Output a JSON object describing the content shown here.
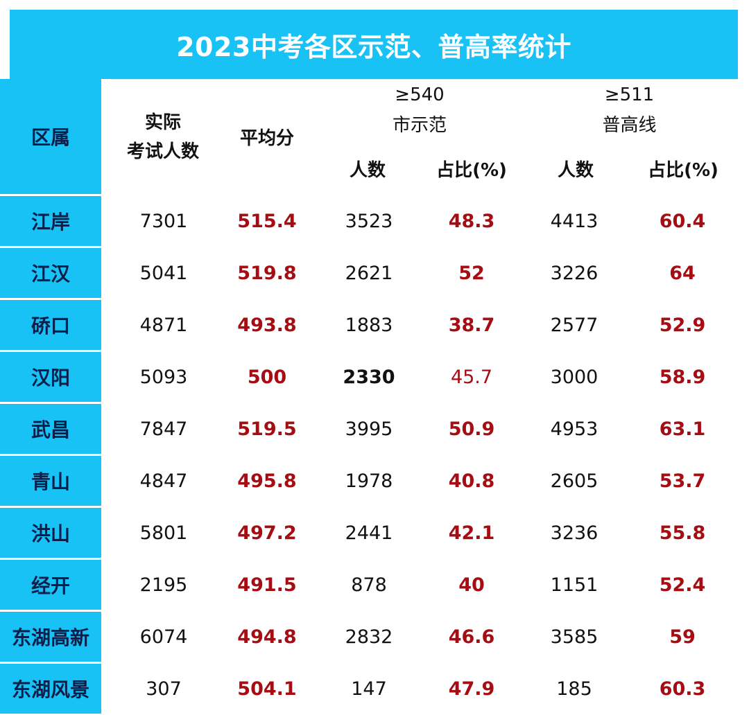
{
  "title": "2023中考各区示范、普高率统计",
  "headers": {
    "district": "区属",
    "actual_line1": "实际",
    "actual_line2": "考试人数",
    "avg": "平均分",
    "demo_threshold": "≥540",
    "demo_label": "市示范",
    "demo_count": "人数",
    "demo_ratio": "占比(%)",
    "general_threshold": "≥511",
    "general_label": "普高线",
    "general_count": "人数",
    "general_ratio": "占比(%)"
  },
  "rows": [
    {
      "district": "江岸",
      "actual": "7301",
      "avg": "515.4",
      "demo_count": "3523",
      "demo_ratio": "48.3",
      "general_count": "4413",
      "general_ratio": "60.4"
    },
    {
      "district": "江汉",
      "actual": "5041",
      "avg": "519.8",
      "demo_count": "2621",
      "demo_ratio": "52",
      "general_count": "3226",
      "general_ratio": "64"
    },
    {
      "district": "硚口",
      "actual": "4871",
      "avg": "493.8",
      "demo_count": "1883",
      "demo_ratio": "38.7",
      "general_count": "2577",
      "general_ratio": "52.9"
    },
    {
      "district": "汉阳",
      "actual": "5093",
      "avg": "500",
      "demo_count": "2330",
      "demo_ratio": "45.7",
      "general_count": "3000",
      "general_ratio": "58.9"
    },
    {
      "district": "武昌",
      "actual": "7847",
      "avg": "519.5",
      "demo_count": "3995",
      "demo_ratio": "50.9",
      "general_count": "4953",
      "general_ratio": "63.1"
    },
    {
      "district": "青山",
      "actual": "4847",
      "avg": "495.8",
      "demo_count": "1978",
      "demo_ratio": "40.8",
      "general_count": "2605",
      "general_ratio": "53.7"
    },
    {
      "district": "洪山",
      "actual": "5801",
      "avg": "497.2",
      "demo_count": "2441",
      "demo_ratio": "42.1",
      "general_count": "3236",
      "general_ratio": "55.8"
    },
    {
      "district": "经开",
      "actual": "2195",
      "avg": "491.5",
      "demo_count": "878",
      "demo_ratio": "40",
      "general_count": "1151",
      "general_ratio": "52.4"
    },
    {
      "district": "东湖高新",
      "actual": "6074",
      "avg": "494.8",
      "demo_count": "2832",
      "demo_ratio": "46.6",
      "general_count": "3585",
      "general_ratio": "59"
    },
    {
      "district": "东湖风景",
      "actual": "307",
      "avg": "504.1",
      "demo_count": "147",
      "demo_ratio": "47.9",
      "general_count": "185",
      "general_ratio": "60.3"
    }
  ],
  "colors": {
    "header_blue": "#19c2f5",
    "emphasis_red": "#a50d12",
    "district_text": "#0b1f4a"
  }
}
